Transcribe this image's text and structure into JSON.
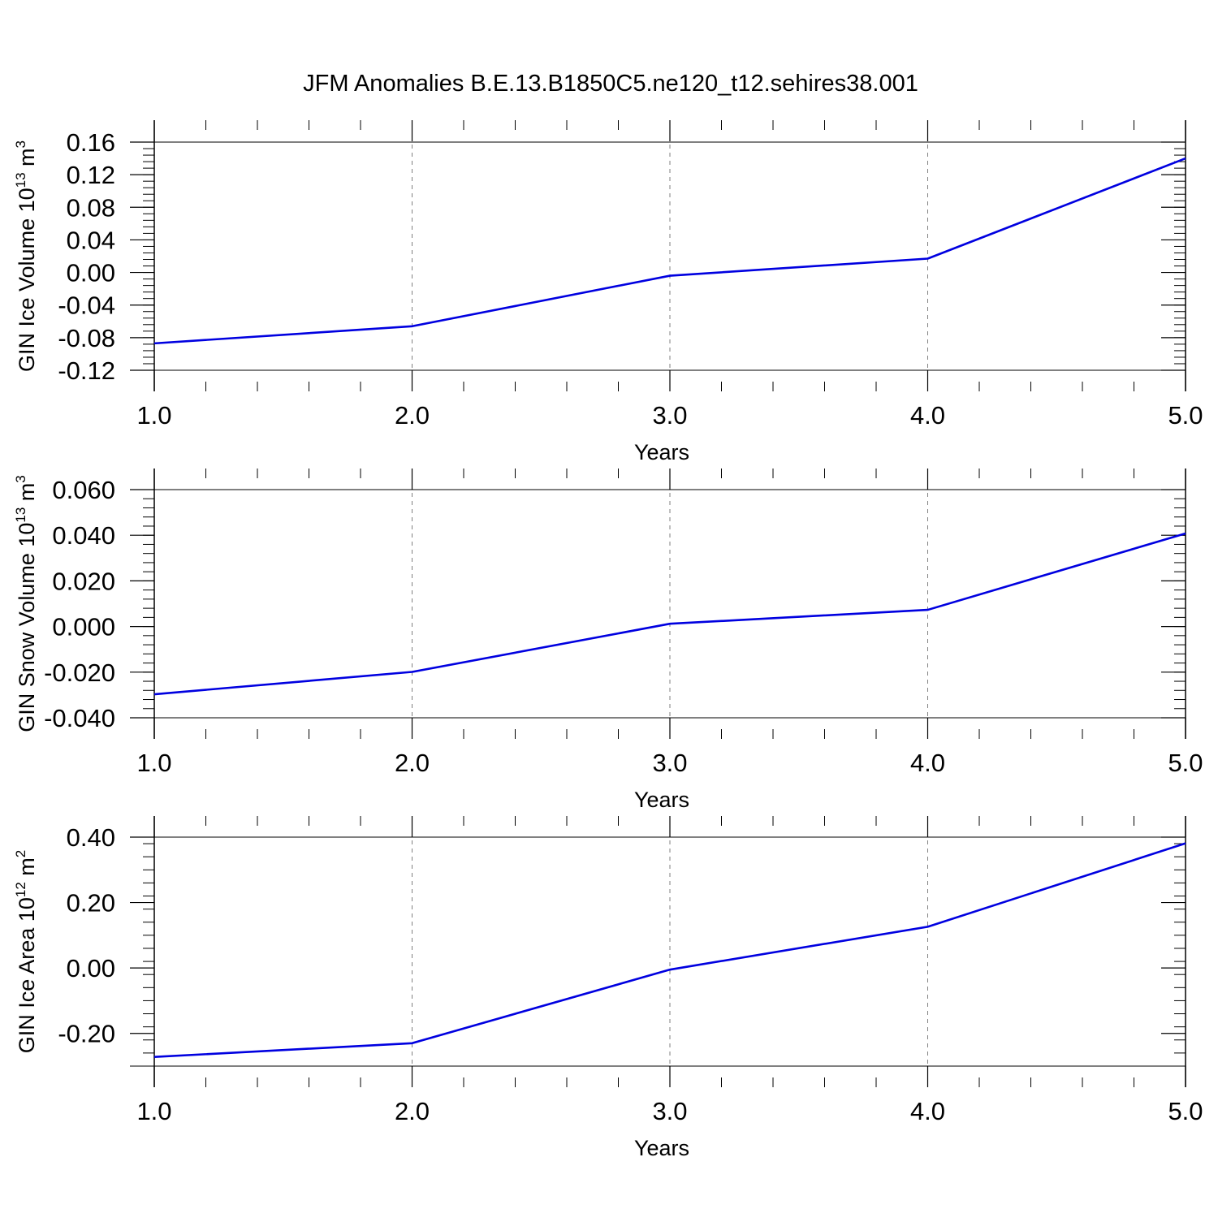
{
  "page": {
    "title": "JFM Anomalies B.E.13.B1850C5.ne120_t12.sehires38.001"
  },
  "chart_data": [
    {
      "type": "line",
      "title": "",
      "xlabel": "Years",
      "ylabel_main": "GIN Ice Volume 10",
      "ylabel_exp": "13",
      "ylabel_unit": " m",
      "ylabel_unit_exp": "3",
      "xlim": [
        1.0,
        5.0
      ],
      "ylim": [
        -0.12,
        0.16
      ],
      "x_ticks": [
        "1.0",
        "2.0",
        "3.0",
        "4.0",
        "5.0"
      ],
      "y_ticks": [
        "-0.12",
        "-0.08",
        "-0.04",
        "0.00",
        "0.04",
        "0.08",
        "0.12",
        "0.16"
      ],
      "vertical_grid": "dashed at major x ticks",
      "horizontal_grid": "off",
      "line_color": "#0000e0",
      "x": [
        1.0,
        2.0,
        3.0,
        4.0,
        5.0
      ],
      "series": [
        {
          "values": [
            -0.087,
            -0.066,
            -0.004,
            0.017,
            0.14
          ]
        }
      ]
    },
    {
      "type": "line",
      "title": "",
      "xlabel": "Years",
      "ylabel_main": "GIN Snow Volume 10",
      "ylabel_exp": "13",
      "ylabel_unit": " m",
      "ylabel_unit_exp": "3",
      "xlim": [
        1.0,
        5.0
      ],
      "ylim": [
        -0.04,
        0.06
      ],
      "x_ticks": [
        "1.0",
        "2.0",
        "3.0",
        "4.0",
        "5.0"
      ],
      "y_ticks": [
        "-0.040",
        "-0.020",
        "0.000",
        "0.020",
        "0.040",
        "0.060"
      ],
      "vertical_grid": "dashed at major x ticks",
      "horizontal_grid": "off",
      "line_color": "#0000e0",
      "x": [
        1.0,
        2.0,
        3.0,
        4.0,
        5.0
      ],
      "series": [
        {
          "values": [
            -0.0297,
            -0.0199,
            0.0012,
            0.0073,
            0.0408
          ]
        }
      ]
    },
    {
      "type": "line",
      "title": "",
      "xlabel": "Years",
      "ylabel_main": "GIN Ice Area 10",
      "ylabel_exp": "12",
      "ylabel_unit": " m",
      "ylabel_unit_exp": "2",
      "xlim": [
        1.0,
        5.0
      ],
      "ylim": [
        -0.3,
        0.4
      ],
      "x_ticks": [
        "1.0",
        "2.0",
        "3.0",
        "4.0",
        "5.0"
      ],
      "y_ticks": [
        "-0.20",
        "0.00",
        "0.20",
        "0.40"
      ],
      "vertical_grid": "dashed at major x ticks",
      "horizontal_grid": "off",
      "line_color": "#0000e0",
      "x": [
        1.0,
        2.0,
        3.0,
        4.0,
        5.0
      ],
      "series": [
        {
          "values": [
            -0.272,
            -0.23,
            -0.005,
            0.126,
            0.381
          ]
        }
      ]
    }
  ]
}
